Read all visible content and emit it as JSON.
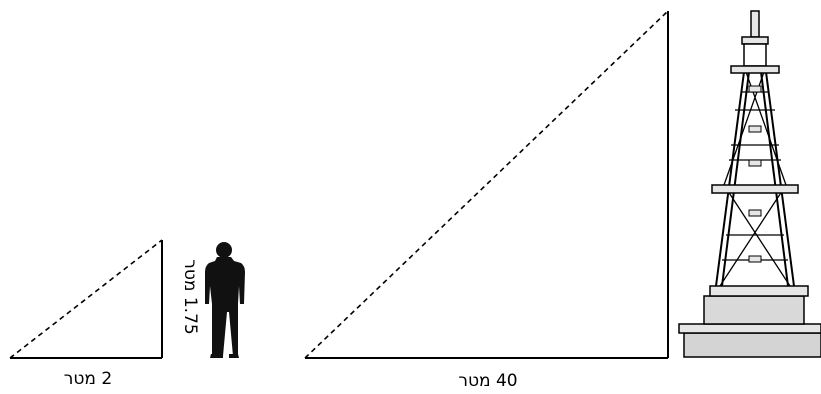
{
  "small_triangle": {
    "base_label": "2 מטר",
    "height_label": "1.75 מטר"
  },
  "large_triangle": {
    "base_label": "40 מטר"
  },
  "figures": {
    "person": "person-silhouette",
    "tower": "lattice-tower"
  }
}
